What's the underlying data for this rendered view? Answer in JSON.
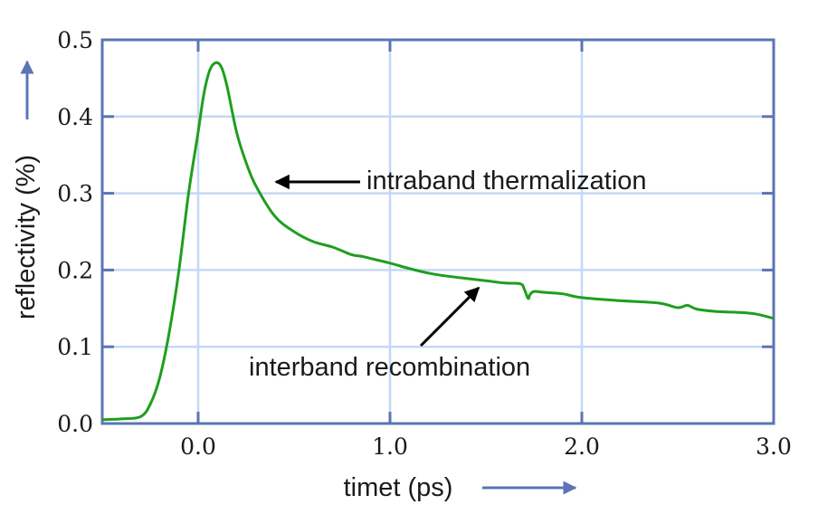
{
  "chart_data": {
    "type": "line",
    "title": "",
    "xlabel": "timet (ps)",
    "ylabel": "reflectivity (%)",
    "xlim": [
      -0.5,
      3.0
    ],
    "ylim": [
      0.0,
      0.5
    ],
    "x_ticks": [
      0.0,
      1.0,
      2.0,
      3.0
    ],
    "x_tick_labels": [
      "0.0",
      "1.0",
      "2.0",
      "3.0"
    ],
    "y_ticks": [
      0.0,
      0.1,
      0.2,
      0.3,
      0.4,
      0.5
    ],
    "y_tick_labels": [
      "0.0",
      "0.1",
      "0.2",
      "0.3",
      "0.4",
      "0.5"
    ],
    "grid": true,
    "colors": {
      "frame": "#5b74b5",
      "grid": "#c5d8f2",
      "line": "#1f9e1f",
      "axis_arrow": "#5b74b5",
      "annotation_arrow": "#000000"
    },
    "series": [
      {
        "x": [
          -0.5,
          -0.4,
          -0.3,
          -0.25,
          -0.2,
          -0.15,
          -0.1,
          -0.05,
          0.0,
          0.03,
          0.06,
          0.09,
          0.12,
          0.15,
          0.2,
          0.25,
          0.3,
          0.4,
          0.5,
          0.6,
          0.7,
          0.8,
          0.85,
          0.9,
          1.0,
          1.1,
          1.2,
          1.3,
          1.4,
          1.5,
          1.6,
          1.68,
          1.7,
          1.72,
          1.73,
          1.75,
          1.8,
          1.9,
          2.0,
          2.2,
          2.4,
          2.5,
          2.55,
          2.6,
          2.7,
          2.8,
          2.9,
          3.0
        ],
        "y": [
          0.005,
          0.006,
          0.009,
          0.025,
          0.06,
          0.12,
          0.2,
          0.3,
          0.38,
          0.43,
          0.46,
          0.47,
          0.465,
          0.44,
          0.38,
          0.34,
          0.31,
          0.27,
          0.25,
          0.237,
          0.23,
          0.22,
          0.218,
          0.215,
          0.209,
          0.202,
          0.196,
          0.192,
          0.189,
          0.186,
          0.183,
          0.182,
          0.175,
          0.163,
          0.168,
          0.172,
          0.171,
          0.169,
          0.164,
          0.16,
          0.157,
          0.151,
          0.154,
          0.149,
          0.146,
          0.145,
          0.143,
          0.137
        ]
      }
    ],
    "annotations": [
      {
        "text": "intraband thermalization",
        "target": [
          0.32,
          0.32
        ]
      },
      {
        "text": "interband recombination",
        "target": [
          1.55,
          0.18
        ]
      }
    ]
  }
}
